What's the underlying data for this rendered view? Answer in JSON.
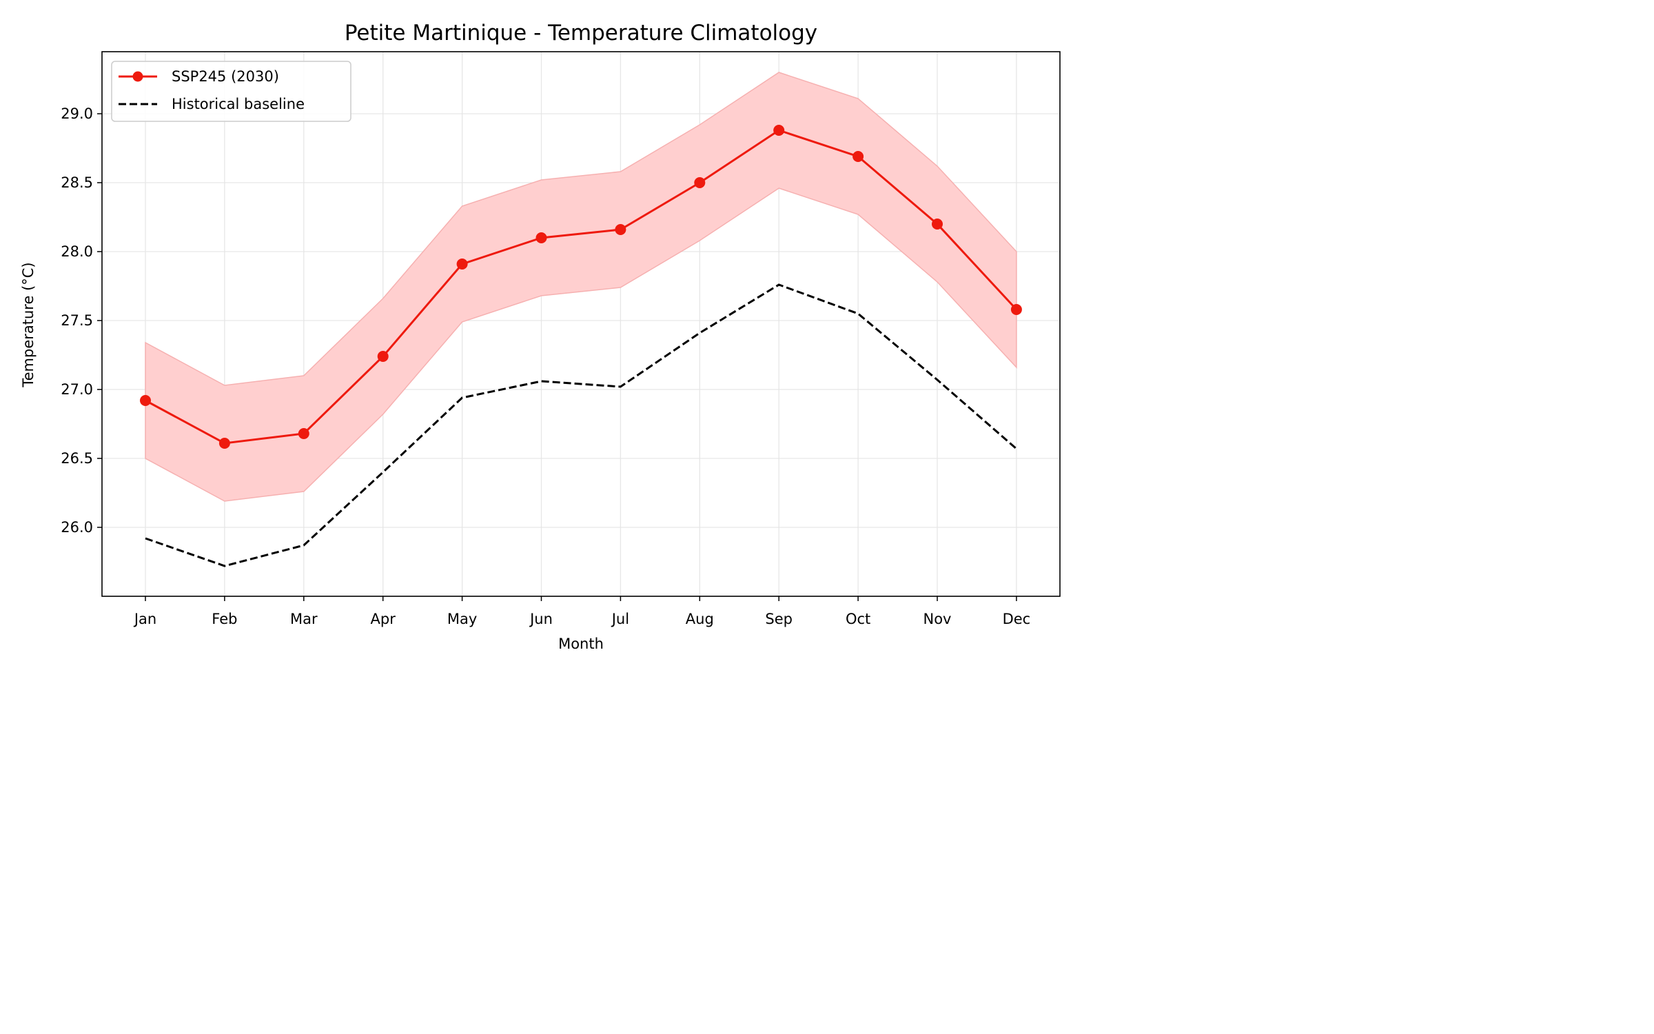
{
  "chart_data": {
    "type": "line",
    "title": "Petite Martinique - Temperature Climatology",
    "xlabel": "Month",
    "ylabel": "Temperature (°C)",
    "categories": [
      "Jan",
      "Feb",
      "Mar",
      "Apr",
      "May",
      "Jun",
      "Jul",
      "Aug",
      "Sep",
      "Oct",
      "Nov",
      "Dec"
    ],
    "ylim": [
      25.5,
      29.45
    ],
    "yticks": [
      "26.0",
      "26.5",
      "27.0",
      "27.5",
      "28.0",
      "28.5",
      "29.0"
    ],
    "grid": true,
    "legend_position": "top-left",
    "series": [
      {
        "name": "SSP245 (2030)",
        "style": "solid-with-markers",
        "color": "#ee1a0e",
        "values": [
          26.92,
          26.61,
          26.68,
          27.24,
          27.91,
          28.1,
          28.16,
          28.5,
          28.88,
          28.69,
          28.2,
          27.58
        ],
        "band_upper": [
          27.34,
          27.03,
          27.1,
          27.66,
          28.33,
          28.52,
          28.58,
          28.92,
          29.3,
          29.11,
          28.62,
          28.0
        ],
        "band_lower": [
          26.5,
          26.19,
          26.26,
          26.82,
          27.49,
          27.68,
          27.74,
          28.08,
          28.46,
          28.27,
          27.78,
          27.16
        ],
        "band_color": "#ffcfcf"
      },
      {
        "name": "Historical baseline",
        "style": "dashed",
        "color": "#000000",
        "values": [
          25.92,
          25.72,
          25.87,
          26.4,
          26.94,
          27.06,
          27.02,
          27.41,
          27.76,
          27.55,
          27.07,
          26.57
        ]
      }
    ]
  }
}
